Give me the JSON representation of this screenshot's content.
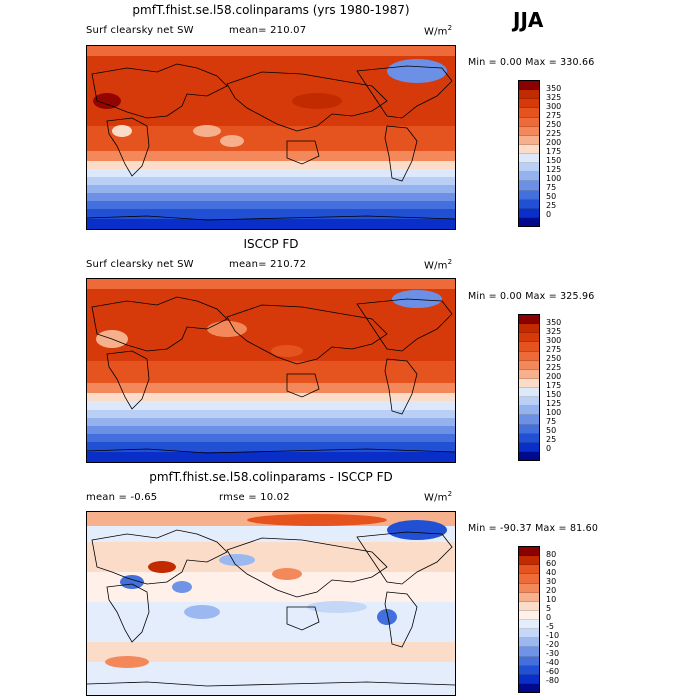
{
  "season": "JJA",
  "panels": [
    {
      "title": "pmfT.fhist.se.l58.colinparams (yrs 1980-1987)",
      "field_label": "Surf clearsky net SW",
      "stat_text": "mean= 210.07",
      "units_base": "W/m",
      "units_sup": "2",
      "minmax_text": "Min =    0.00 Max = 330.66",
      "colorbar": {
        "labels": [
          "350",
          "325",
          "300",
          "275",
          "250",
          "225",
          "200",
          "175",
          "150",
          "125",
          "100",
          "75",
          "50",
          "25",
          "0"
        ],
        "colors": [
          "#8b0000",
          "#c22a00",
          "#d73a0a",
          "#e5531f",
          "#ee6a38",
          "#f3895a",
          "#f7b08c",
          "#fbdcc8",
          "#dde8fb",
          "#b9cff5",
          "#93b2ee",
          "#6b90e6",
          "#4470de",
          "#2150d4",
          "#0a2fc8",
          "#000a8c"
        ]
      }
    },
    {
      "title": "ISCCP FD",
      "field_label": "Surf clearsky net SW",
      "stat_text": "mean= 210.72",
      "units_base": "W/m",
      "units_sup": "2",
      "minmax_text": "Min =    0.00 Max = 325.96",
      "colorbar": {
        "labels": [
          "350",
          "325",
          "300",
          "275",
          "250",
          "225",
          "200",
          "175",
          "150",
          "125",
          "100",
          "75",
          "50",
          "25",
          "0"
        ],
        "colors": [
          "#8b0000",
          "#c22a00",
          "#d73a0a",
          "#e5531f",
          "#ee6a38",
          "#f3895a",
          "#f7b08c",
          "#fbdcc8",
          "#dde8fb",
          "#b9cff5",
          "#93b2ee",
          "#6b90e6",
          "#4470de",
          "#2150d4",
          "#0a2fc8",
          "#000a8c"
        ]
      }
    },
    {
      "title": "pmfT.fhist.se.l58.colinparams - ISCCP FD",
      "field_label": "mean =   -0.65",
      "stat_text": "rmse =   10.02",
      "units_base": "W/m",
      "units_sup": "2",
      "minmax_text": "Min = -90.37 Max =   81.60",
      "colorbar": {
        "labels": [
          "80",
          "60",
          "40",
          "30",
          "20",
          "10",
          "5",
          "0",
          "-5",
          "-10",
          "-20",
          "-30",
          "-40",
          "-60",
          "-80"
        ],
        "colors": [
          "#8b0000",
          "#c22a00",
          "#e5531f",
          "#ee6a38",
          "#f3895a",
          "#f7b08c",
          "#fbdcc8",
          "#fff1ea",
          "#e4edfc",
          "#c5d7f7",
          "#9bb8f0",
          "#6f93e6",
          "#4470de",
          "#2150d4",
          "#0a2fc8",
          "#000a8c"
        ]
      }
    }
  ]
}
